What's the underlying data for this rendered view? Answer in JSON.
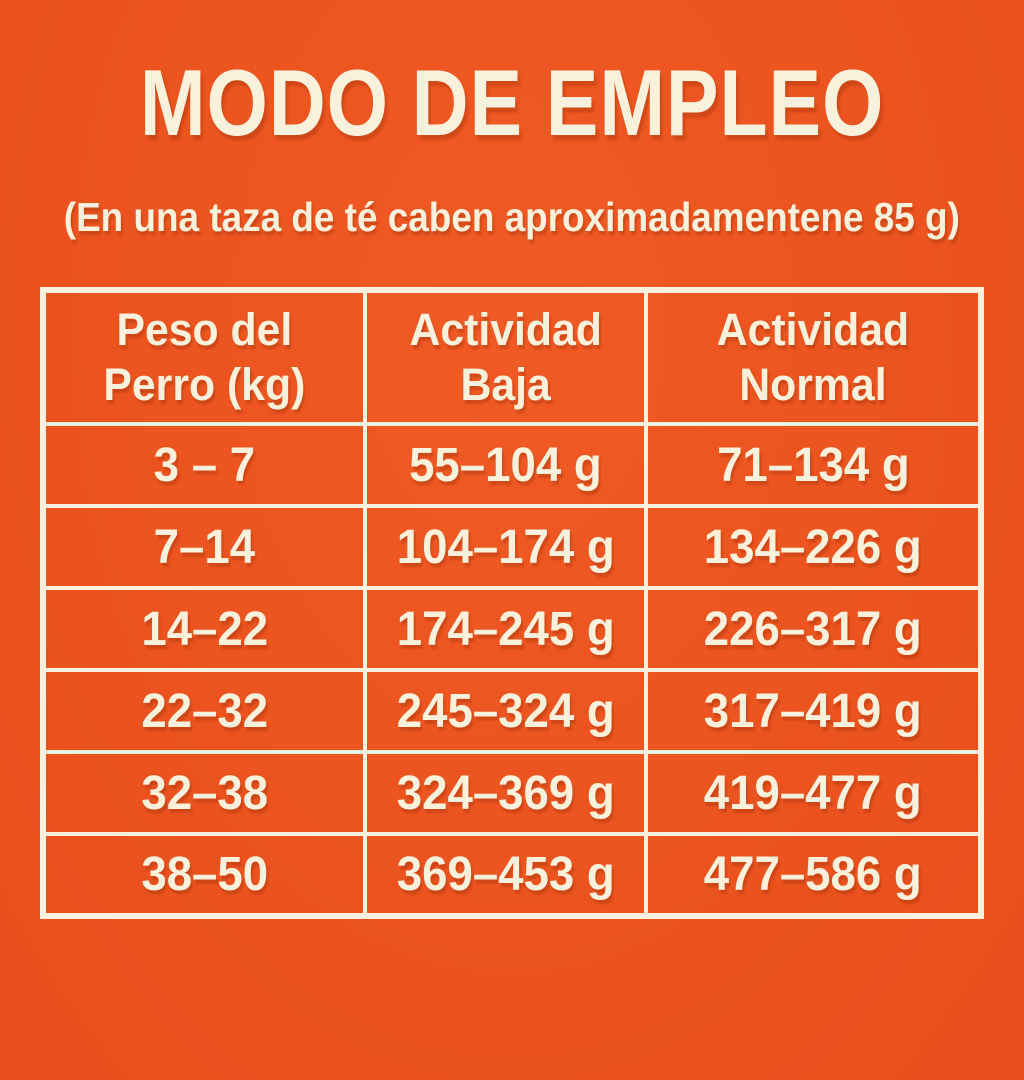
{
  "page": {
    "title": "MODO DE EMPLEO",
    "subtitle": "(En una taza de té caben aproximadamentene 85 g)"
  },
  "headers": [
    {
      "line1": "Peso del",
      "line2": "Perro (kg)"
    },
    {
      "line1": "Actividad",
      "line2": "Baja"
    },
    {
      "line1": "Actividad",
      "line2": "Normal"
    }
  ],
  "chart_data": {
    "type": "table",
    "title": "MODO DE EMPLEO",
    "subtitle": "(En una taza de té caben aproximadamentene 85 g)",
    "columns": [
      "Peso del Perro (kg)",
      "Actividad Baja",
      "Actividad Normal"
    ],
    "rows": [
      [
        "3 – 7",
        "55–104 g",
        "71–134 g"
      ],
      [
        "7–14",
        "104–174 g",
        "134–226 g"
      ],
      [
        "14–22",
        "174–245 g",
        "226–317 g"
      ],
      [
        "22–32",
        "245–324 g",
        "317–419 g"
      ],
      [
        "32–38",
        "324–369 g",
        "419–477 g"
      ],
      [
        "38–50",
        "369–453 g",
        "477–586 g"
      ]
    ],
    "units": "g",
    "cup_capacity_g": 85
  },
  "colors": {
    "background": "#EC5320",
    "background_highlight": "#F05A24",
    "background_low": "#E84E1B",
    "text_and_borders": "#F9F1DB"
  }
}
